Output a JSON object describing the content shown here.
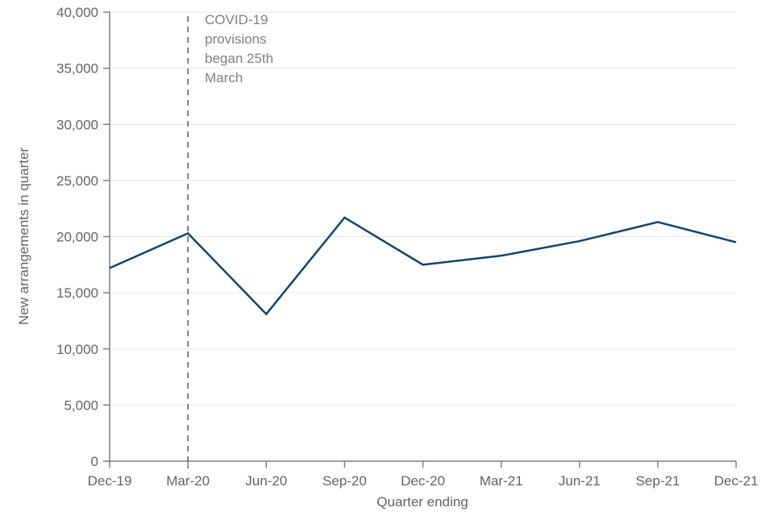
{
  "chart_data": {
    "type": "line",
    "title": "",
    "xlabel": "Quarter ending",
    "ylabel": "New arrangements in quarter",
    "categories": [
      "Dec-19",
      "Mar-20",
      "Jun-20",
      "Sep-20",
      "Dec-20",
      "Mar-21",
      "Jun-21",
      "Sep-21",
      "Dec-21"
    ],
    "series": [
      {
        "name": "New arrangements in quarter",
        "values": [
          17200,
          20300,
          13100,
          21700,
          17500,
          18300,
          19600,
          21300,
          19500
        ]
      }
    ],
    "ylim": [
      0,
      40000
    ],
    "ytick_step": 5000,
    "ytick_labels": [
      "0",
      "5,000",
      "10,000",
      "15,000",
      "20,000",
      "25,000",
      "30,000",
      "35,000",
      "40,000"
    ],
    "grid": "horizontal-only",
    "legend": "none",
    "annotation": {
      "text": "COVID-19 provisions began 25th March",
      "lines": [
        "COVID-19",
        "provisions",
        "began 25th",
        "March"
      ],
      "x_category": "Mar-20",
      "marker": "vertical-dashed-line"
    },
    "colors": {
      "line": "#12436d",
      "grid": "#e6e6e6",
      "axis": "#7f7f7f",
      "tick_label": "#636363",
      "axis_title": "#636363",
      "annotation_text": "#808080",
      "annotation_line": "#7f7f7f",
      "background": "#ffffff"
    }
  }
}
